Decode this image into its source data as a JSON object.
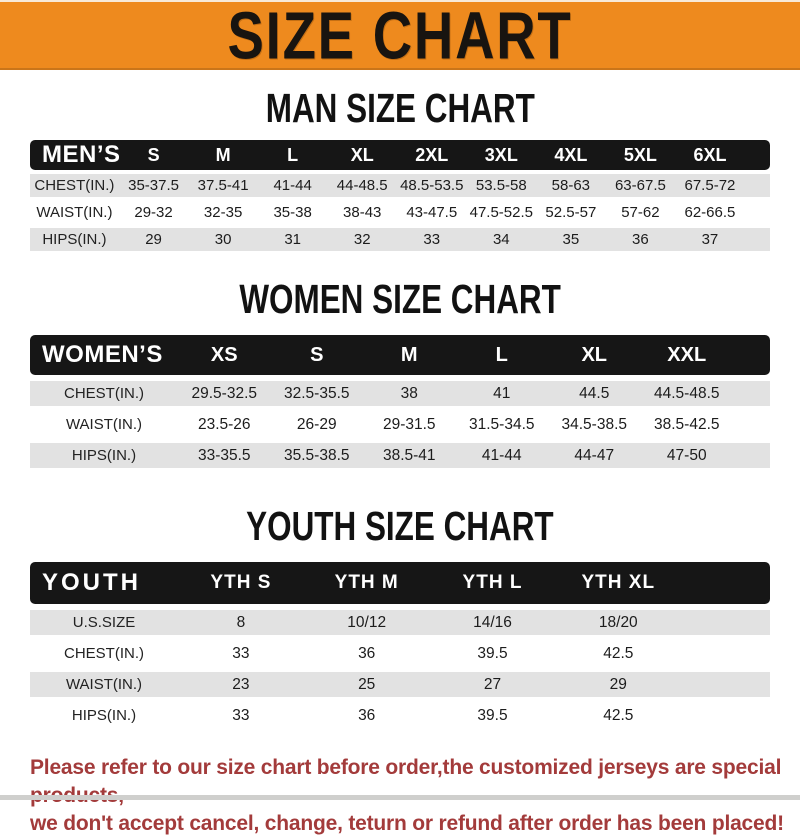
{
  "banner": {
    "title": "SIZE CHART"
  },
  "colors": {
    "banner_bg": "#ee8a1e",
    "header_bg": "#161616",
    "row_alt": "#e2e2e2",
    "note_color": "#a33b3b"
  },
  "sections": [
    {
      "heading": "MAN SIZE CHART",
      "table": {
        "label": "MEN’S",
        "columns": [
          "S",
          "M",
          "L",
          "XL",
          "2XL",
          "3XL",
          "4XL",
          "5XL",
          "6XL"
        ],
        "rows": [
          {
            "label": "CHEST(IN.)",
            "values": [
              "35-37.5",
              "37.5-41",
              "41-44",
              "44-48.5",
              "48.5-53.5",
              "53.5-58",
              "58-63",
              "63-67.5",
              "67.5-72"
            ]
          },
          {
            "label": "WAIST(IN.)",
            "values": [
              "29-32",
              "32-35",
              "35-38",
              "38-43",
              "43-47.5",
              "47.5-52.5",
              "52.5-57",
              "57-62",
              "62-66.5"
            ]
          },
          {
            "label": "HIPS(IN.)",
            "values": [
              "29",
              "30",
              "31",
              "32",
              "33",
              "34",
              "35",
              "36",
              "37"
            ]
          }
        ]
      }
    },
    {
      "heading": "WOMEN SIZE CHART",
      "table": {
        "label": "WOMEN’S",
        "columns": [
          "XS",
          "S",
          "M",
          "L",
          "XL",
          "XXL"
        ],
        "rows": [
          {
            "label": "CHEST(IN.)",
            "values": [
              "29.5-32.5",
              "32.5-35.5",
              "38",
              "41",
              "44.5",
              "44.5-48.5"
            ]
          },
          {
            "label": "WAIST(IN.)",
            "values": [
              "23.5-26",
              "26-29",
              "29-31.5",
              "31.5-34.5",
              "34.5-38.5",
              "38.5-42.5"
            ]
          },
          {
            "label": "HIPS(IN.)",
            "values": [
              "33-35.5",
              "35.5-38.5",
              "38.5-41",
              "41-44",
              "44-47",
              "47-50"
            ]
          }
        ]
      }
    },
    {
      "heading": "YOUTH SIZE CHART",
      "table": {
        "label": "YOUTH",
        "columns": [
          "YTH S",
          "YTH M",
          "YTH L",
          "YTH XL"
        ],
        "rows": [
          {
            "label": "U.S.SIZE",
            "values": [
              "8",
              "10/12",
              "14/16",
              "18/20"
            ]
          },
          {
            "label": "CHEST(IN.)",
            "values": [
              "33",
              "36",
              "39.5",
              "42.5"
            ]
          },
          {
            "label": "WAIST(IN.)",
            "values": [
              "23",
              "25",
              "27",
              "29"
            ]
          },
          {
            "label": "HIPS(IN.)",
            "values": [
              "33",
              "36",
              "39.5",
              "42.5"
            ]
          }
        ]
      }
    }
  ],
  "note": {
    "lines": [
      "Please refer to our size chart before order,the customized jerseys are special products,",
      "we don't accept cancel, change, teturn or refund after order has been placed!"
    ]
  }
}
